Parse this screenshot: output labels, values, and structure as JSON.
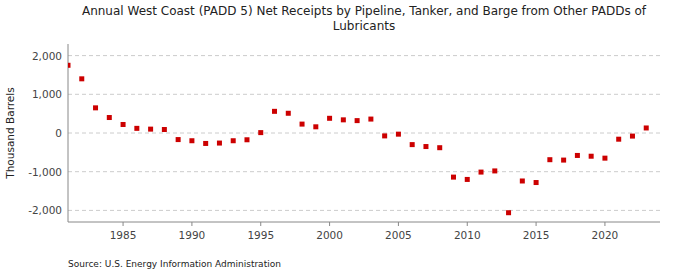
{
  "chart_data": {
    "type": "scatter",
    "title": "Annual West Coast (PADD 5) Net Receipts by Pipeline, Tanker, and Barge from Other PADDs of\nLubricants",
    "ylabel": "Thousand Barrels",
    "source": "Source: U.S. Energy Information Administration",
    "color": "#cc0000",
    "marker": "square",
    "grid": true,
    "xlim": [
      1981,
      2024
    ],
    "ylim": [
      -2300,
      2300
    ],
    "xticks": [
      1985,
      1990,
      1995,
      2000,
      2005,
      2010,
      2015,
      2020
    ],
    "yticks": [
      {
        "value": -2000,
        "label": "-2,000"
      },
      {
        "value": -1000,
        "label": "-1,000"
      },
      0,
      {
        "value": 1000,
        "label": "1,000"
      },
      {
        "value": 2000,
        "label": "2,000"
      }
    ],
    "x": [
      1981,
      1982,
      1983,
      1984,
      1985,
      1986,
      1987,
      1988,
      1989,
      1990,
      1991,
      1992,
      1993,
      1994,
      1995,
      1996,
      1997,
      1998,
      1999,
      2000,
      2001,
      2002,
      2003,
      2004,
      2005,
      2006,
      2007,
      2008,
      2009,
      2010,
      2011,
      2012,
      2013,
      2014,
      2015,
      2016,
      2017,
      2018,
      2019,
      2020,
      2021,
      2022,
      2023
    ],
    "values": [
      1750,
      1400,
      650,
      400,
      220,
      120,
      100,
      90,
      -170,
      -200,
      -270,
      -260,
      -200,
      -175,
      10,
      560,
      510,
      230,
      160,
      380,
      340,
      320,
      360,
      -75,
      -30,
      -300,
      -350,
      -380,
      -1140,
      -1200,
      -1010,
      -980,
      -2060,
      -1240,
      -1280,
      -690,
      -700,
      -580,
      -600,
      -650,
      -160,
      -80,
      130
    ]
  }
}
